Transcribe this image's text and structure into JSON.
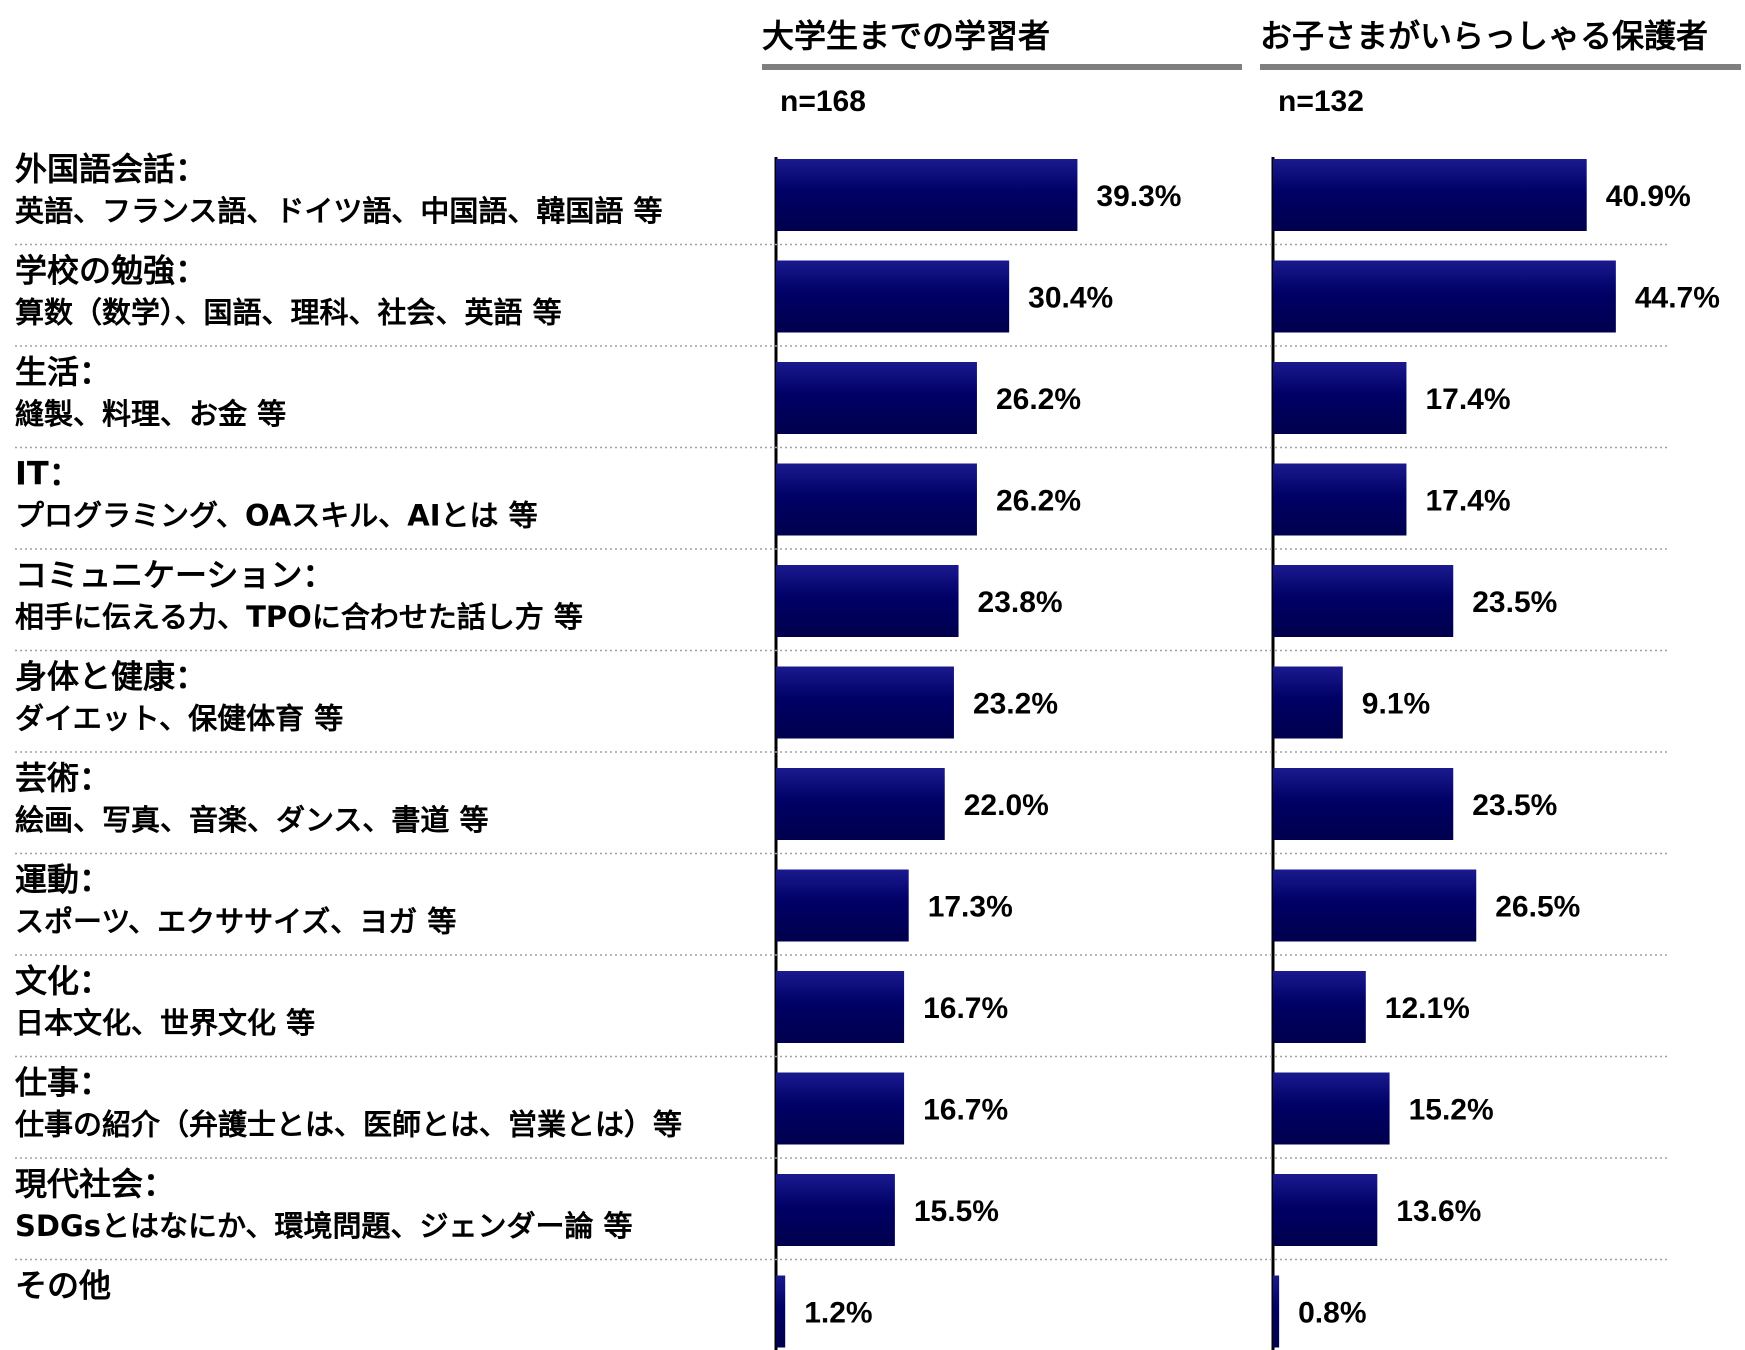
{
  "chart_data": {
    "type": "bar",
    "orientation": "horizontal",
    "categories": [
      {
        "head": "外国語会話：",
        "sub": "英語、フランス語、ドイツ語、中国語、韓国語 等"
      },
      {
        "head": "学校の勉強：",
        "sub": "算数（数学）、国語、理科、社会、英語 等"
      },
      {
        "head": "生活：",
        "sub": "縫製、料理、お金 等"
      },
      {
        "head": "IT：",
        "sub": "プログラミング、OAスキル、AIとは 等"
      },
      {
        "head": "コミュニケーション：",
        "sub": "相手に伝える力、TPOに合わせた話し方 等"
      },
      {
        "head": "身体と健康：",
        "sub": "ダイエット、保健体育 等"
      },
      {
        "head": "芸術：",
        "sub": "絵画、写真、音楽、ダンス、書道 等"
      },
      {
        "head": "運動：",
        "sub": "スポーツ、エクササイズ、ヨガ 等"
      },
      {
        "head": "文化：",
        "sub": "日本文化、世界文化 等"
      },
      {
        "head": "仕事：",
        "sub": "仕事の紹介（弁護士とは、医師とは、営業とは）等"
      },
      {
        "head": "現代社会：",
        "sub": "SDGsとはなにか、環境問題、ジェンダー論 等"
      },
      {
        "head": "その他",
        "sub": ""
      }
    ],
    "series": [
      {
        "name": "大学生までの学習者",
        "n_label": "n=168",
        "values": [
          39.3,
          30.4,
          26.2,
          26.2,
          23.8,
          23.2,
          22.0,
          17.3,
          16.7,
          16.7,
          15.5,
          1.2
        ],
        "labels": [
          "39.3%",
          "30.4%",
          "26.2%",
          "26.2%",
          "23.8%",
          "23.2%",
          "22.0%",
          "17.3%",
          "16.7%",
          "16.7%",
          "15.5%",
          "1.2%"
        ]
      },
      {
        "name": "お子さまがいらっしゃる保護者",
        "n_label": "n=132",
        "values": [
          40.9,
          44.7,
          17.4,
          17.4,
          23.5,
          9.1,
          23.5,
          26.5,
          12.1,
          15.2,
          13.6,
          0.8
        ],
        "labels": [
          "40.9%",
          "44.7%",
          "17.4%",
          "17.4%",
          "23.5%",
          "9.1%",
          "23.5%",
          "26.5%",
          "12.1%",
          "15.2%",
          "13.6%",
          "0.8%"
        ]
      }
    ],
    "value_unit": "%",
    "xlim": [
      0,
      50
    ],
    "grid": "dotted row separators",
    "colors": {
      "bar": "#000066",
      "bar_highlight": "#1a1a8f",
      "axis": "#000000",
      "title_rule": "#7f7f7f",
      "separator": "#a0a0a0"
    }
  }
}
